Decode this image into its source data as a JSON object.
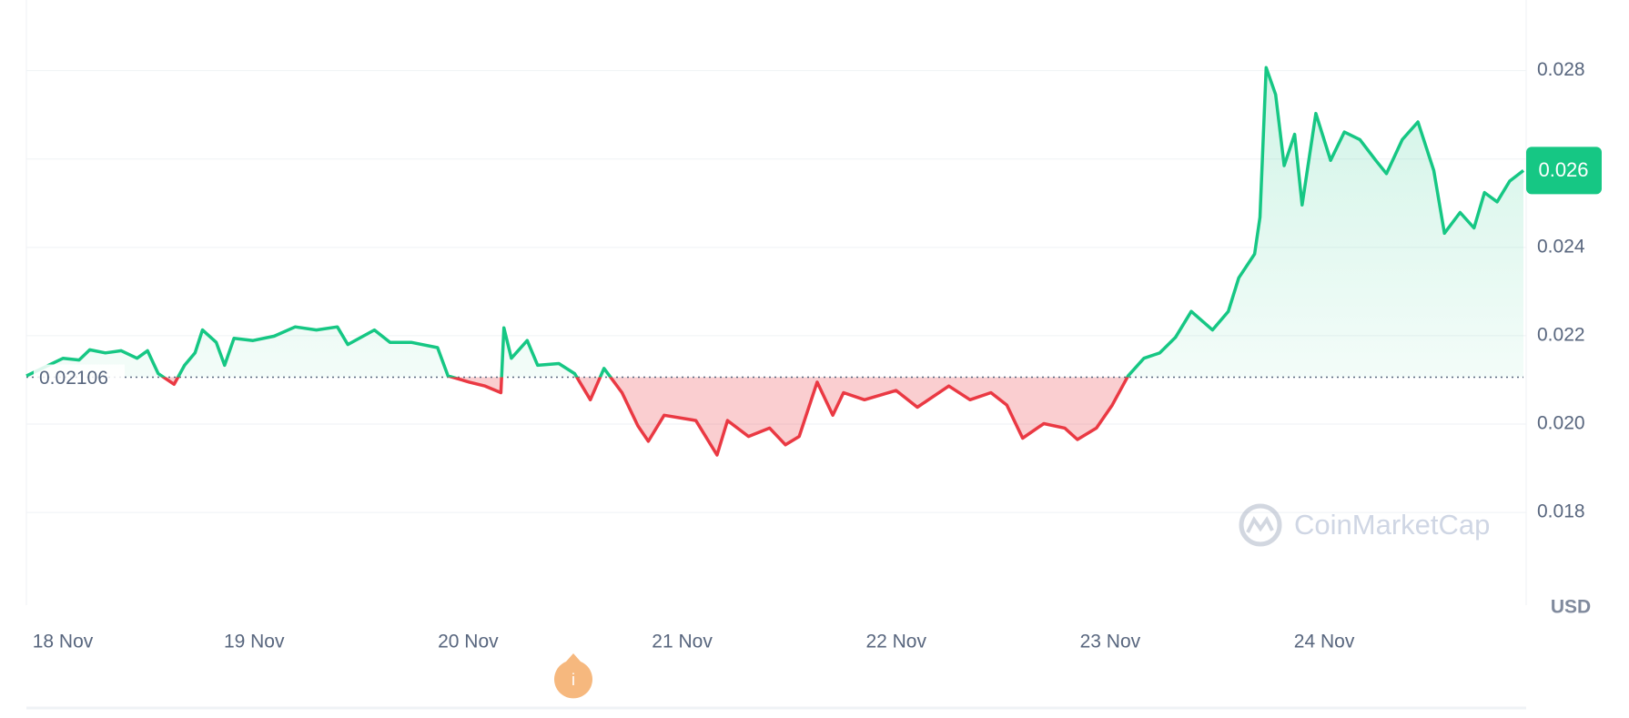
{
  "chart_data": {
    "type": "line",
    "x": [
      17.936,
      18.108,
      18.182,
      18.232,
      18.305,
      18.379,
      18.453,
      18.502,
      18.552,
      18.626,
      18.675,
      18.724,
      18.759,
      18.823,
      18.862,
      18.906,
      18.995,
      19.094,
      19.192,
      19.291,
      19.389,
      19.438,
      19.562,
      19.635,
      19.734,
      19.857,
      19.906,
      20.005,
      20.079,
      20.153,
      20.167,
      20.202,
      20.276,
      20.325,
      20.424,
      20.498,
      20.571,
      20.635,
      20.719,
      20.793,
      20.842,
      20.916,
      21.064,
      21.163,
      21.212,
      21.31,
      21.409,
      21.483,
      21.547,
      21.631,
      21.704,
      21.754,
      21.852,
      22.0,
      22.099,
      22.246,
      22.345,
      22.443,
      22.517,
      22.591,
      22.69,
      22.788,
      22.847,
      22.936,
      23.01,
      23.084,
      23.158,
      23.232,
      23.305,
      23.379,
      23.478,
      23.552,
      23.601,
      23.675,
      23.7,
      23.729,
      23.773,
      23.813,
      23.862,
      23.897,
      23.961,
      24.03,
      24.094,
      24.167,
      24.241,
      24.291,
      24.365,
      24.438,
      24.512,
      24.562,
      24.635,
      24.7,
      24.749,
      24.808,
      24.867,
      24.931
    ],
    "series": [
      {
        "name": "Price",
        "color": "#16c784",
        "values": [
          0.02109,
          0.02149,
          0.02145,
          0.02168,
          0.02161,
          0.02166,
          0.02149,
          0.02166,
          0.02114,
          0.0209,
          0.02133,
          0.02161,
          0.02213,
          0.02185,
          0.02133,
          0.02194,
          0.02189,
          0.02199,
          0.0222,
          0.02213,
          0.0222,
          0.0218,
          0.02213,
          0.02185,
          0.02185,
          0.02173,
          0.02109,
          0.02095,
          0.02086,
          0.02071,
          0.02218,
          0.02149,
          0.02189,
          0.02133,
          0.02137,
          0.02114,
          0.02055,
          0.02126,
          0.02071,
          0.01996,
          0.01961,
          0.0202,
          0.02008,
          0.0193,
          0.02008,
          0.01972,
          0.01991,
          0.01953,
          0.01972,
          0.02095,
          0.0202,
          0.02071,
          0.02055,
          0.02076,
          0.02038,
          0.02086,
          0.02055,
          0.02071,
          0.02043,
          0.01968,
          0.02001,
          0.01991,
          0.01965,
          0.01991,
          0.02043,
          0.02109,
          0.02149,
          0.02161,
          0.02196,
          0.02255,
          0.02213,
          0.02255,
          0.02331,
          0.02385,
          0.02468,
          0.02807,
          0.02746,
          0.02585,
          0.02656,
          0.02496,
          0.02703,
          0.02597,
          0.02661,
          0.02644,
          0.02597,
          0.02567,
          0.02644,
          0.02684,
          0.02574,
          0.02432,
          0.02479,
          0.02444,
          0.02524,
          0.02503,
          0.0255,
          0.02574
        ]
      }
    ],
    "down_color": "#ea3943",
    "baseline": 0.02106,
    "current_price_label": "0.026",
    "xlim": [
      17.936,
      24.931
    ],
    "xticks": [
      {
        "value": 18,
        "label": "18 Nov"
      },
      {
        "value": 19,
        "label": "19 Nov"
      },
      {
        "value": 20,
        "label": "20 Nov"
      },
      {
        "value": 21,
        "label": "21 Nov"
      },
      {
        "value": 22,
        "label": "22 Nov"
      },
      {
        "value": 23,
        "label": "23 Nov"
      },
      {
        "value": 24,
        "label": "24 Nov"
      }
    ],
    "ylim": [
      0.0159,
      0.0296
    ],
    "yticks": [
      0.018,
      {
        "value": 0.02,
        "label": "0.020"
      },
      0.022,
      0.024,
      0.026,
      0.028
    ],
    "y_unit": "USD",
    "watermark": "CoinMarketCap",
    "grid": true
  }
}
